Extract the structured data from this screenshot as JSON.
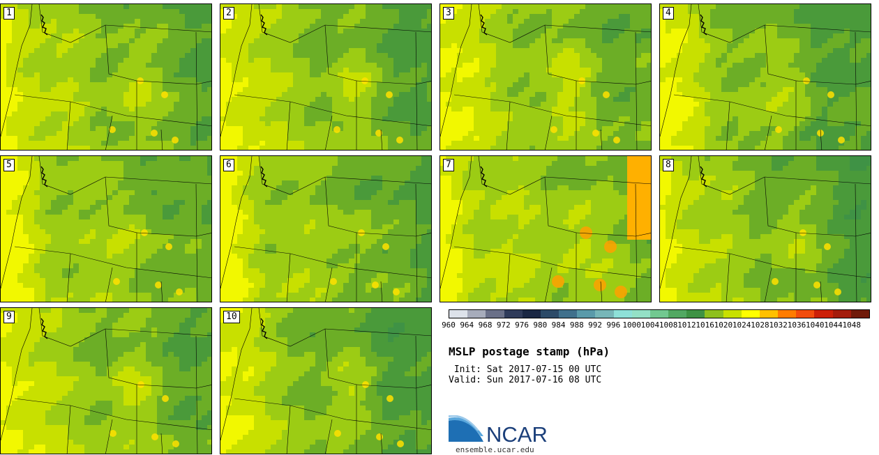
{
  "panels": [
    {
      "label": "1"
    },
    {
      "label": "2"
    },
    {
      "label": "3"
    },
    {
      "label": "4"
    },
    {
      "label": "5"
    },
    {
      "label": "6"
    },
    {
      "label": "7"
    },
    {
      "label": "8"
    },
    {
      "label": "9"
    },
    {
      "label": "10"
    }
  ],
  "colorbar": {
    "labels": [
      "960",
      "964",
      "968",
      "972",
      "976",
      "980",
      "984",
      "988",
      "992",
      "996",
      "1000",
      "1004",
      "1008",
      "1012",
      "1016",
      "1020",
      "1024",
      "1028",
      "1032",
      "1036",
      "1040",
      "1044",
      "1048"
    ],
    "colors": [
      "#dde2ea",
      "#a7acbb",
      "#6a7088",
      "#2f3b5a",
      "#1a2744",
      "#2c4a68",
      "#40708c",
      "#5a9aaa",
      "#77b6b8",
      "#8ee0d8",
      "#94e0c6",
      "#72c890",
      "#52a862",
      "#3e9244",
      "#8ec01e",
      "#c8e000",
      "#ffff00",
      "#ffc000",
      "#ff7c00",
      "#f24c0c",
      "#cc2008",
      "#a41c0c",
      "#701a0a"
    ]
  },
  "title": "MSLP postage stamp (hPa)",
  "init_text": " Init: Sat 2017-07-15 00 UTC",
  "valid_text": "Valid: Sun 2017-07-16 08 UTC",
  "logo_text": "NCAR",
  "url": "ensemble.ucar.edu"
}
